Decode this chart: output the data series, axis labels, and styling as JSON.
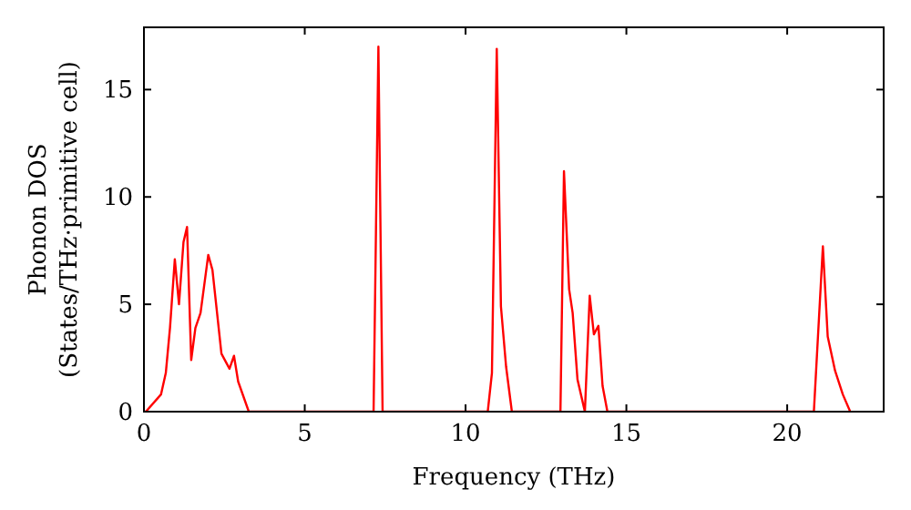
{
  "chart_data": {
    "type": "line",
    "xlabel": "Frequency (THz)",
    "ylabel": "Phonon DOS\n(States/THz·primitive cell)",
    "xlim": [
      0,
      23
    ],
    "ylim": [
      0,
      17.9
    ],
    "xticks": [
      0,
      5,
      10,
      15,
      20
    ],
    "yticks": [
      0,
      5,
      10,
      15
    ],
    "grid": false,
    "marker": "none",
    "line_style": "solid",
    "series": [
      {
        "color": "#ff0000",
        "x": [
          0,
          0.06,
          0.53,
          0.68,
          0.81,
          0.96,
          1.09,
          1.23,
          1.34,
          1.47,
          1.6,
          1.76,
          2.0,
          2.13,
          2.41,
          2.66,
          2.8,
          2.93,
          3.26,
          7.14,
          7.29,
          7.42,
          10.69,
          10.82,
          10.97,
          11.1,
          11.26,
          11.44,
          12.95,
          13.06,
          13.22,
          13.33,
          13.48,
          13.71,
          13.86,
          13.99,
          14.13,
          14.26,
          14.41,
          20.83,
          21.11,
          21.26,
          21.49,
          21.73,
          21.96
        ],
        "values": [
          0,
          0,
          0.8,
          1.8,
          3.9,
          7.1,
          5.0,
          7.9,
          8.6,
          2.4,
          3.9,
          4.6,
          7.3,
          6.6,
          2.7,
          2.0,
          2.6,
          1.4,
          0,
          0,
          17.0,
          0,
          0,
          1.8,
          16.9,
          4.9,
          2.1,
          0,
          0,
          11.2,
          5.7,
          4.6,
          1.5,
          0,
          5.4,
          3.6,
          4.0,
          1.2,
          0,
          0,
          7.7,
          3.5,
          1.9,
          0.8,
          0
        ]
      }
    ]
  }
}
